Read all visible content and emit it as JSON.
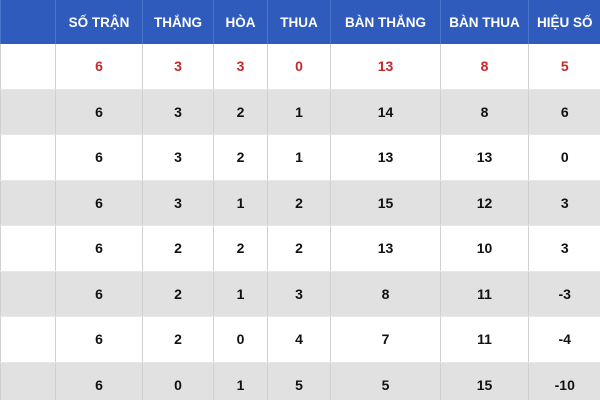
{
  "table": {
    "header": [
      "SỐ TRẬN",
      "THẮNG",
      "HÒA",
      "THUA",
      "BÀN THẮNG",
      "BÀN THUA",
      "HIỆU SỐ"
    ],
    "rows": [
      [
        6,
        3,
        3,
        0,
        13,
        8,
        5
      ],
      [
        6,
        3,
        2,
        1,
        14,
        8,
        6
      ],
      [
        6,
        3,
        2,
        1,
        13,
        13,
        0
      ],
      [
        6,
        3,
        1,
        2,
        15,
        12,
        3
      ],
      [
        6,
        2,
        2,
        2,
        13,
        10,
        3
      ],
      [
        6,
        2,
        1,
        3,
        8,
        11,
        -3
      ],
      [
        6,
        2,
        0,
        4,
        7,
        11,
        -4
      ],
      [
        6,
        0,
        1,
        5,
        5,
        15,
        -10
      ]
    ]
  }
}
